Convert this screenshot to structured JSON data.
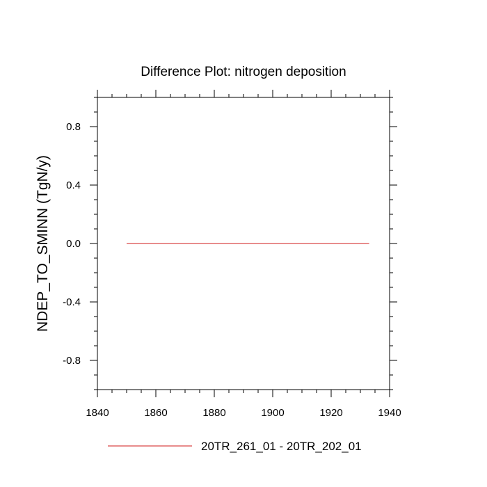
{
  "chart_data": {
    "type": "line",
    "title": "Difference Plot: nitrogen deposition",
    "xlabel": "",
    "ylabel": "NDEP_TO_SMINN  (TgN/y)",
    "xlim": [
      1840,
      1940
    ],
    "ylim": [
      -1.0,
      1.0
    ],
    "xticks": [
      1840,
      1860,
      1880,
      1900,
      1920,
      1940
    ],
    "xtick_labels": [
      "1840",
      "1860",
      "1880",
      "1900",
      "1920",
      "1940"
    ],
    "yticks": [
      -0.8,
      -0.4,
      0.0,
      0.4,
      0.8
    ],
    "ytick_labels": [
      "-0.8",
      "-0.4",
      "0.0",
      "0.4",
      "0.8"
    ],
    "grid": false,
    "legend_position": "bottom",
    "series": [
      {
        "name": "20TR_261_01 - 20TR_202_01",
        "color": "#e06666",
        "x": [
          1850,
          1933
        ],
        "y": [
          0.0,
          0.0
        ]
      }
    ]
  }
}
